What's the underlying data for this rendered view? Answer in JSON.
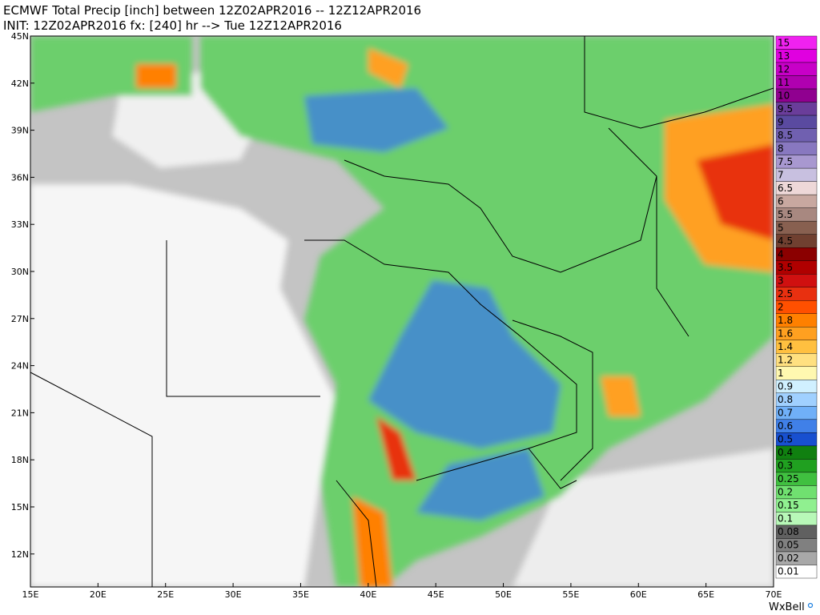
{
  "header": {
    "title": "ECMWF Total Precip [inch] between 12Z02APR2016 -- 12Z12APR2016",
    "subtitle": "INIT: 12Z02APR2016 fx: [240] hr --> Tue 12Z12APR2016"
  },
  "map": {
    "lat_labels": [
      "45N",
      "42N",
      "39N",
      "36N",
      "33N",
      "30N",
      "27N",
      "24N",
      "21N",
      "18N",
      "15N",
      "12N"
    ],
    "lon_labels": [
      "15E",
      "20E",
      "25E",
      "30E",
      "35E",
      "40E",
      "45E",
      "50E",
      "55E",
      "60E",
      "65E",
      "70E"
    ]
  },
  "legend": {
    "labels": [
      "15",
      "13",
      "12",
      "11",
      "10",
      "9.5",
      "9",
      "8.5",
      "8",
      "7.5",
      "7",
      "6.5",
      "6",
      "5.5",
      "5",
      "4.5",
      "4",
      "3.5",
      "3",
      "2.5",
      "2",
      "1.8",
      "1.6",
      "1.4",
      "1.2",
      "1",
      "0.9",
      "0.8",
      "0.7",
      "0.6",
      "0.5",
      "0.4",
      "0.3",
      "0.25",
      "0.2",
      "0.15",
      "0.1",
      "0.08",
      "0.05",
      "0.02",
      "0.01"
    ],
    "colors": [
      "#f022f0",
      "#e000e0",
      "#c800c8",
      "#b000b0",
      "#900090",
      "#6a3d9a",
      "#5a4aa0",
      "#7060b0",
      "#8878c0",
      "#a898d0",
      "#c8c0e0",
      "#eed8d8",
      "#c8a8a0",
      "#a88880",
      "#886050",
      "#704030",
      "#8b0000",
      "#b00000",
      "#d01010",
      "#e83010",
      "#ff5000",
      "#ff8000",
      "#ffa020",
      "#ffc040",
      "#ffe080",
      "#fff8b0",
      "#d0f0ff",
      "#a0d0ff",
      "#70b0f8",
      "#4080e8",
      "#1850d0",
      "#108010",
      "#20a020",
      "#40c040",
      "#70e070",
      "#90f090",
      "#b8f8b8",
      "#606060",
      "#808080",
      "#a8a8a8",
      "#ffffff"
    ]
  },
  "footer": {
    "credit": "WxBell"
  }
}
